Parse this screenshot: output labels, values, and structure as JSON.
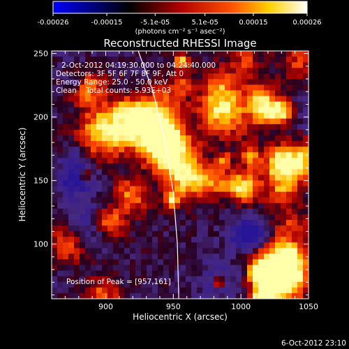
{
  "colorbar": {
    "ticks": [
      "-0.00026",
      "-0.00015",
      "-5.1e-05",
      "5.1e-05",
      "0.00015",
      "0.00026"
    ],
    "tick_values": [
      -0.00026,
      -0.00015,
      -5.1e-05,
      5.1e-05,
      0.00015,
      0.00026
    ],
    "range": [
      -0.00026,
      0.00026
    ],
    "units_label": "(photons cm⁻² s⁻¹ asec⁻²)",
    "colormap": [
      "#0000ff",
      "#000000",
      "#ff0000",
      "#ffff00",
      "#ffffff"
    ]
  },
  "chart_data": {
    "type": "heatmap",
    "title": "Reconstructed RHESSI Image",
    "xlabel": "Heliocentric X (arcsec)",
    "ylabel": "Heliocentric Y (arcsec)",
    "xlim": [
      860,
      1050
    ],
    "ylim": [
      57,
      252
    ],
    "x_ticks": [
      900,
      950,
      1000,
      1050
    ],
    "y_ticks": [
      100,
      150,
      200,
      250
    ],
    "limb_curve": [
      [
        924,
        252
      ],
      [
        935,
        220
      ],
      [
        944,
        180
      ],
      [
        950,
        140
      ],
      [
        953,
        100
      ],
      [
        954,
        57
      ]
    ],
    "peak": [
      957,
      161
    ],
    "info_lines": [
      "2-Oct-2012 04:19:30.000 to 04:24:40.000",
      "Detectors: 3F 5F 6F 7F 8F 9F, Att 0",
      "Energy Range: 25.0 - 50.0 keV",
      "Clean    Total counts: 5.93E+03"
    ],
    "peak_label": "Position of Peak = [957,161]"
  },
  "footer": {
    "timestamp": "6-Oct-2012 23:10"
  }
}
